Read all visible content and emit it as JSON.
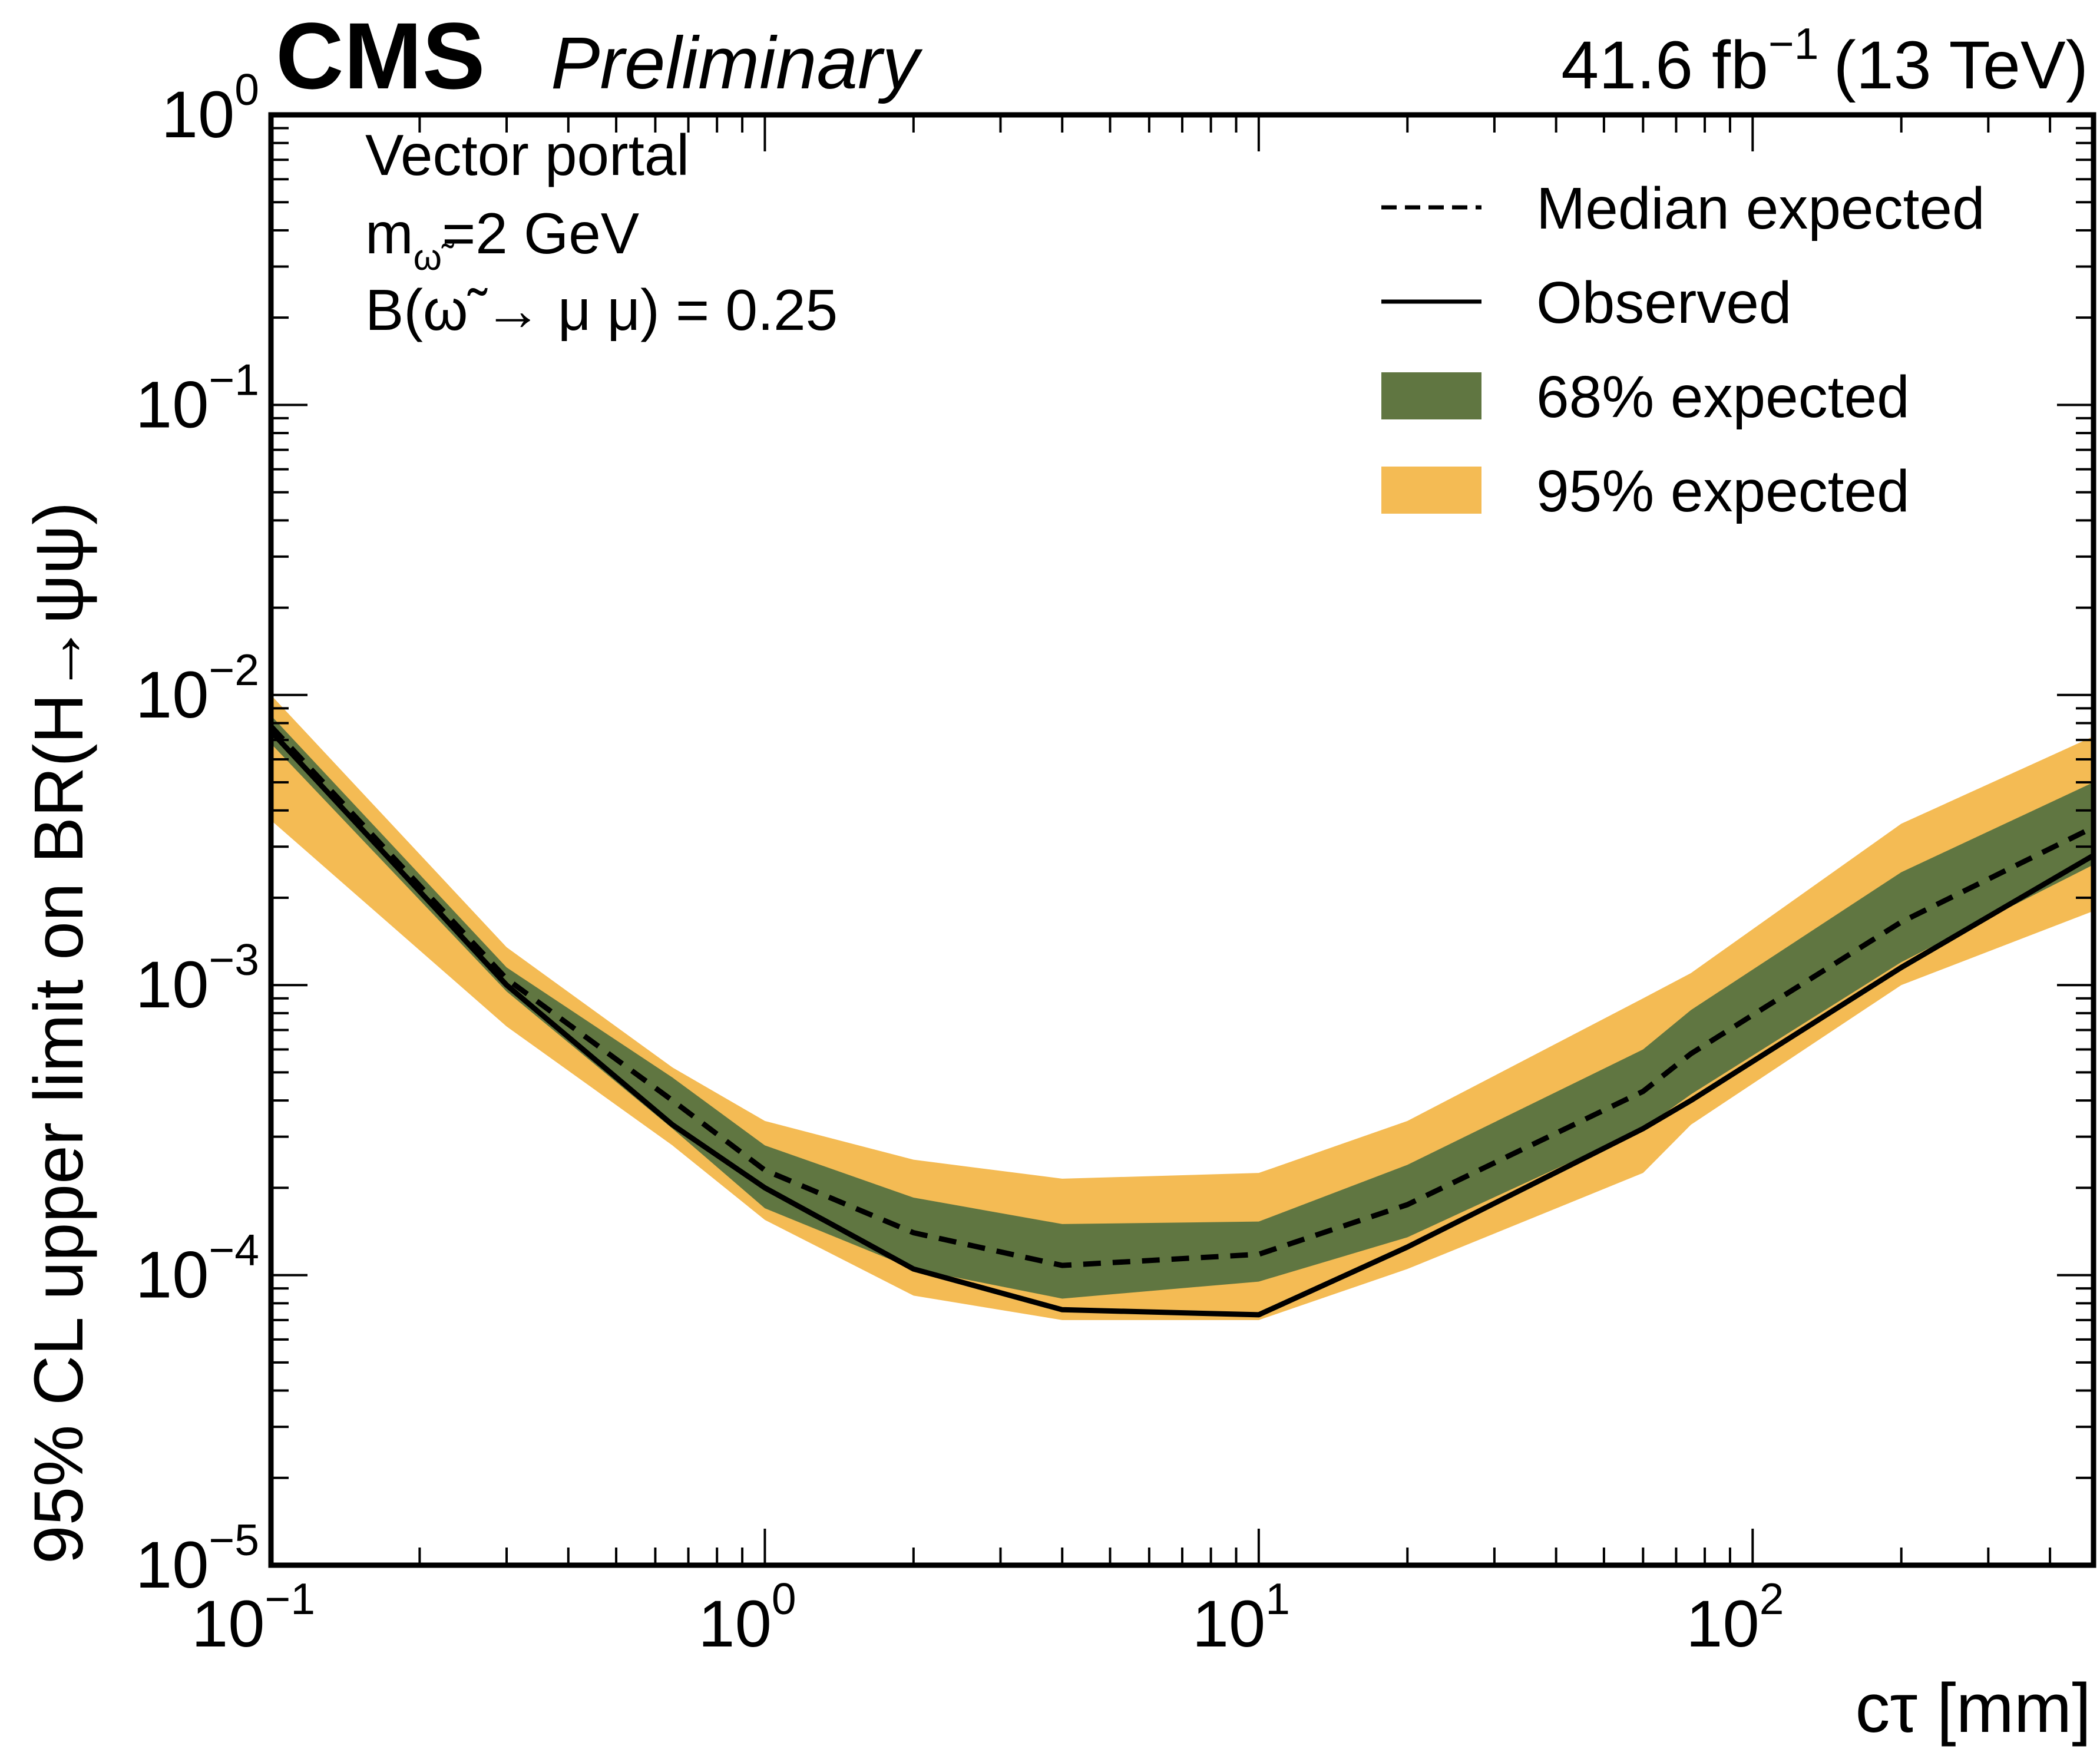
{
  "header": {
    "experiment": "CMS",
    "status": "Preliminary",
    "lumi_text": "41.6 fb",
    "lumi_exp": "−1",
    "energy_text": "(13 TeV)"
  },
  "annotation": {
    "line1": "Vector portal",
    "line2_main": "m",
    "line2_sub": "ω̃",
    "line2_rest": "=2 GeV",
    "line3": "B(ω̃ → μ μ) = 0.25"
  },
  "colors": {
    "band68": "#607641",
    "band95": "#F4BB54",
    "line": "#000000"
  },
  "chart_data": {
    "type": "line",
    "title": "",
    "xlabel": "cτ [mm]",
    "ylabel": "95% CL upper limit on BR(H→ψψ)",
    "xscale": "log",
    "yscale": "log",
    "xlim": [
      0.1,
      490
    ],
    "ylim": [
      1e-05,
      1
    ],
    "x_ticks": [
      {
        "base": "10",
        "exp": "−1",
        "value": 0.1
      },
      {
        "base": "10",
        "exp": "0",
        "value": 1
      },
      {
        "base": "10",
        "exp": "1",
        "value": 10
      },
      {
        "base": "10",
        "exp": "2",
        "value": 100
      }
    ],
    "y_ticks": [
      {
        "base": "10",
        "exp": "0",
        "value": 1
      },
      {
        "base": "10",
        "exp": "−1",
        "value": 0.1
      },
      {
        "base": "10",
        "exp": "−2",
        "value": 0.01
      },
      {
        "base": "10",
        "exp": "−3",
        "value": 0.001
      },
      {
        "base": "10",
        "exp": "−4",
        "value": 0.0001
      },
      {
        "base": "10",
        "exp": "−5",
        "value": 1e-05
      }
    ],
    "grid": false,
    "legend_position": "top-right",
    "x": [
      0.1,
      0.3,
      0.65,
      1,
      2,
      4,
      10,
      20,
      60,
      75,
      200,
      490
    ],
    "series": [
      {
        "name": "Median expected",
        "style": "dashed",
        "values": [
          0.0078,
          0.00105,
          0.0004,
          0.00023,
          0.00014,
          0.000108,
          0.000118,
          0.000175,
          0.00043,
          0.00058,
          0.00165,
          0.0035
        ]
      },
      {
        "name": "Observed",
        "style": "solid",
        "values": [
          0.0075,
          0.001,
          0.00033,
          0.0002,
          0.000105,
          7.6e-05,
          7.3e-05,
          0.000125,
          0.00032,
          0.0004,
          0.00115,
          0.0028
        ]
      },
      {
        "name": "68% expected",
        "style": "band",
        "low": [
          0.0068,
          0.00095,
          0.00032,
          0.00017,
          0.000105,
          8.3e-05,
          9.5e-05,
          0.000135,
          0.00032,
          0.00042,
          0.0012,
          0.0026
        ],
        "high": [
          0.0085,
          0.00115,
          0.00048,
          0.00028,
          0.000185,
          0.00015,
          0.000153,
          0.00024,
          0.0006,
          0.00082,
          0.00245,
          0.005
        ]
      },
      {
        "name": "95% expected",
        "style": "band",
        "low": [
          0.0037,
          0.00072,
          0.00028,
          0.000155,
          8.5e-05,
          7e-05,
          7e-05,
          0.000105,
          0.000225,
          0.00033,
          0.001,
          0.0018
        ],
        "high": [
          0.01,
          0.00135,
          0.00052,
          0.00034,
          0.00025,
          0.000215,
          0.000225,
          0.00034,
          0.0009,
          0.0011,
          0.0036,
          0.0072
        ]
      }
    ],
    "legend": [
      {
        "label": "Median expected",
        "kind": "dashed"
      },
      {
        "label": "Observed",
        "kind": "solid"
      },
      {
        "label": "68% expected",
        "kind": "band68"
      },
      {
        "label": "95% expected",
        "kind": "band95"
      }
    ]
  }
}
